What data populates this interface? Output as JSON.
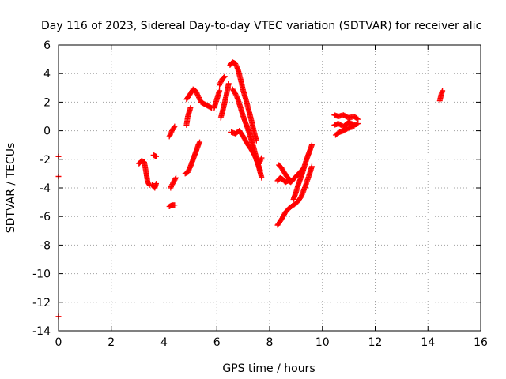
{
  "chart_data": {
    "type": "scatter",
    "title": "Day 116 of 2023, Sidereal Day-to-day VTEC variation (SDTVAR) for receiver alic",
    "xlabel": "GPS time / hours",
    "ylabel": "SDTVAR / TECUs",
    "xlim": [
      0,
      16
    ],
    "ylim": [
      -14,
      6
    ],
    "xticks": [
      0,
      2,
      4,
      6,
      8,
      10,
      12,
      14,
      16
    ],
    "yticks": [
      -14,
      -12,
      -10,
      -8,
      -6,
      -4,
      -2,
      0,
      2,
      4,
      6
    ],
    "grid": true,
    "legend": "none",
    "marker": "plus",
    "color": "#ff0000",
    "segments": [
      {
        "x": [
          0.0,
          0.0
        ],
        "y": [
          -1.8,
          -1.8
        ]
      },
      {
        "x": [
          0.0,
          0.0
        ],
        "y": [
          -3.2,
          -3.2
        ]
      },
      {
        "x": [
          0.0,
          0.0
        ],
        "y": [
          -13.0,
          -13.0
        ]
      },
      {
        "x": [
          3.05,
          3.15,
          3.25,
          3.32,
          3.38,
          3.45
        ],
        "y": [
          -2.3,
          -2.1,
          -2.2,
          -2.9,
          -3.6,
          -3.8
        ]
      },
      {
        "x": [
          3.55,
          3.65,
          3.7
        ],
        "y": [
          -3.8,
          -4.0,
          -3.7
        ]
      },
      {
        "x": [
          3.6,
          3.7
        ],
        "y": [
          -1.7,
          -1.8
        ]
      },
      {
        "x": [
          4.2,
          4.3,
          4.4
        ],
        "y": [
          -5.3,
          -5.2,
          -5.2
        ]
      },
      {
        "x": [
          4.25,
          4.35,
          4.45
        ],
        "y": [
          -4.0,
          -3.6,
          -3.3
        ]
      },
      {
        "x": [
          4.2,
          4.3,
          4.4
        ],
        "y": [
          -0.4,
          0.0,
          0.3
        ]
      },
      {
        "x": [
          4.8,
          4.9,
          5.0,
          5.1,
          5.2,
          5.3,
          5.35
        ],
        "y": [
          -3.0,
          -2.9,
          -2.5,
          -2.0,
          -1.5,
          -1.0,
          -0.8
        ]
      },
      {
        "x": [
          4.85,
          4.9,
          5.0
        ],
        "y": [
          0.4,
          1.0,
          1.6
        ]
      },
      {
        "x": [
          4.85,
          5.0,
          5.1,
          5.2,
          5.3,
          5.4,
          5.5,
          5.6,
          5.7,
          5.8
        ],
        "y": [
          2.2,
          2.6,
          2.9,
          2.8,
          2.4,
          2.0,
          1.9,
          1.8,
          1.7,
          1.6
        ]
      },
      {
        "x": [
          5.9,
          6.0,
          6.1
        ],
        "y": [
          1.6,
          2.2,
          2.8
        ]
      },
      {
        "x": [
          6.1,
          6.2,
          6.3
        ],
        "y": [
          3.2,
          3.6,
          3.8
        ]
      },
      {
        "x": [
          6.15,
          6.25,
          6.35,
          6.45
        ],
        "y": [
          0.9,
          1.6,
          2.4,
          3.3
        ]
      },
      {
        "x": [
          6.5,
          6.6,
          6.7,
          6.8,
          6.9,
          7.0,
          7.1,
          7.2,
          7.3,
          7.4,
          7.5
        ],
        "y": [
          4.6,
          4.8,
          4.7,
          4.3,
          3.6,
          2.8,
          2.2,
          1.5,
          0.8,
          0.0,
          -0.7
        ]
      },
      {
        "x": [
          6.6,
          6.7,
          6.8,
          6.9,
          7.0,
          7.1,
          7.2,
          7.3,
          7.4,
          7.5,
          7.6,
          7.7
        ],
        "y": [
          2.9,
          2.6,
          2.2,
          1.6,
          1.0,
          0.5,
          0.0,
          -0.6,
          -1.2,
          -1.9,
          -2.6,
          -3.3
        ]
      },
      {
        "x": [
          6.55,
          6.7,
          6.85,
          7.0,
          7.15,
          7.3,
          7.45,
          7.55,
          7.65
        ],
        "y": [
          -0.1,
          -0.2,
          0.0,
          -0.4,
          -0.9,
          -1.3,
          -1.8,
          -2.3,
          -2.8
        ]
      },
      {
        "x": [
          7.6,
          7.7
        ],
        "y": [
          -2.3,
          -1.9
        ]
      },
      {
        "x": [
          8.3,
          8.4,
          8.5,
          8.6,
          8.7,
          8.8,
          8.9,
          9.0,
          9.1,
          9.2,
          9.3
        ],
        "y": [
          -3.5,
          -3.3,
          -3.4,
          -3.6,
          -3.5,
          -3.6,
          -3.4,
          -3.2,
          -3.0,
          -2.8,
          -2.6
        ]
      },
      {
        "x": [
          8.35,
          8.45,
          8.55,
          8.65,
          8.75
        ],
        "y": [
          -2.4,
          -2.6,
          -2.9,
          -3.2,
          -3.4
        ]
      },
      {
        "x": [
          8.3,
          8.45,
          8.6,
          8.75,
          8.9,
          9.05,
          9.2,
          9.35,
          9.5,
          9.6
        ],
        "y": [
          -6.6,
          -6.2,
          -5.7,
          -5.4,
          -5.2,
          -5.0,
          -4.6,
          -3.9,
          -3.1,
          -2.5
        ]
      },
      {
        "x": [
          8.9,
          9.0,
          9.1,
          9.2,
          9.3,
          9.4,
          9.5,
          9.6
        ],
        "y": [
          -4.8,
          -4.3,
          -3.7,
          -3.2,
          -2.6,
          -2.0,
          -1.5,
          -1.0
        ]
      },
      {
        "x": [
          10.45,
          10.6,
          10.8,
          11.0,
          11.2,
          11.35
        ],
        "y": [
          1.1,
          1.0,
          1.1,
          0.9,
          1.0,
          0.8
        ]
      },
      {
        "x": [
          10.45,
          10.6,
          10.8,
          11.0,
          11.2,
          11.35
        ],
        "y": [
          0.4,
          0.5,
          0.3,
          0.6,
          0.4,
          0.5
        ]
      },
      {
        "x": [
          10.5,
          10.65,
          10.8,
          11.0,
          11.2
        ],
        "y": [
          -0.3,
          -0.1,
          0.0,
          0.2,
          0.3
        ]
      },
      {
        "x": [
          14.45,
          14.5,
          14.55
        ],
        "y": [
          2.1,
          2.5,
          2.8
        ]
      }
    ]
  }
}
